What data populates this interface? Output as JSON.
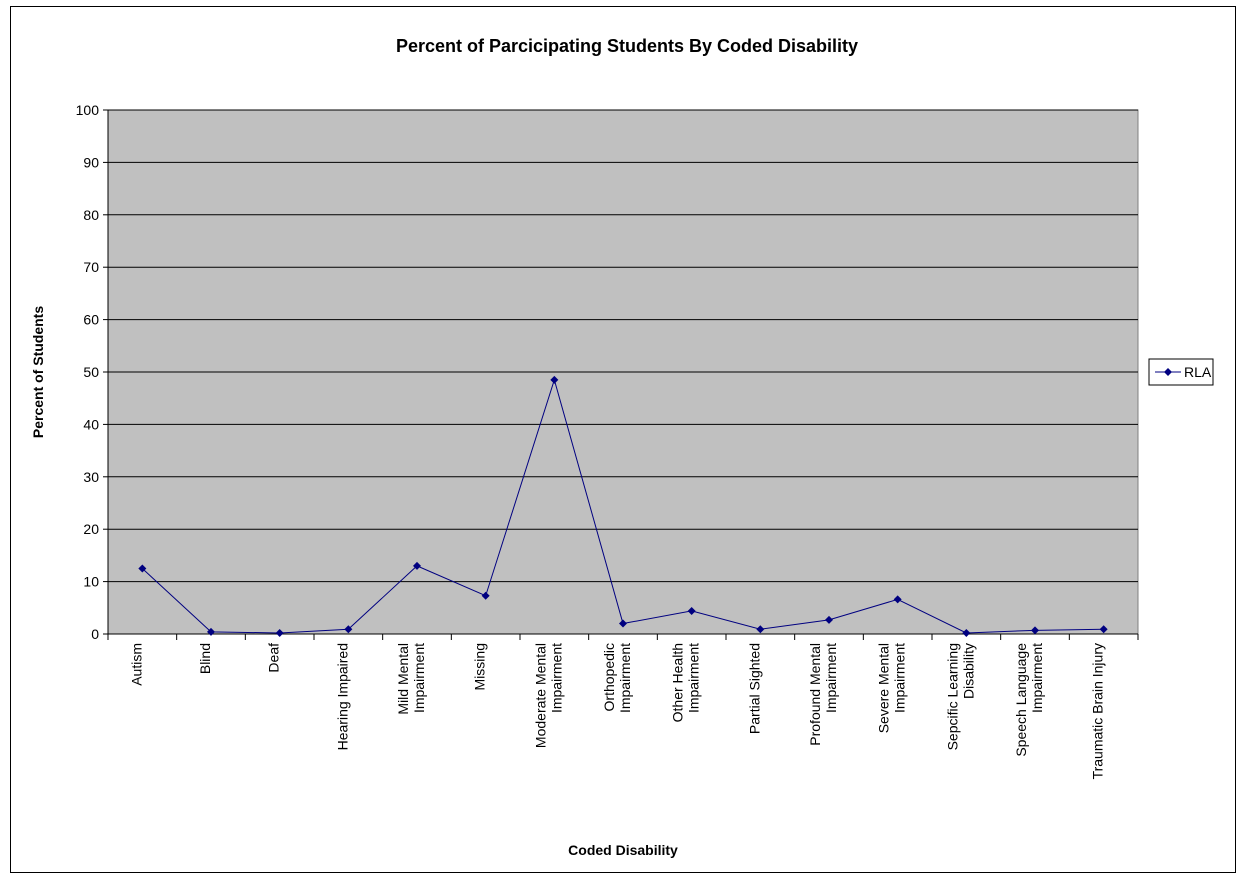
{
  "chart_data": {
    "type": "line",
    "title": "Percent of Parcicipating Students By Coded Disability",
    "xlabel": "Coded Disability",
    "ylabel": "Percent of Students",
    "ylim": [
      0,
      100
    ],
    "yticks": [
      0,
      10,
      20,
      30,
      40,
      50,
      60,
      70,
      80,
      90,
      100
    ],
    "grid": true,
    "legend_position": "right",
    "categories": [
      "Autism",
      "Blind",
      "Deaf",
      "Hearing Impaired",
      "Mild Mental Impairment",
      "Missing",
      "Moderate Mental Impairment",
      "Orthopedic Impairment",
      "Other Health Impairment",
      "Partial Sighted",
      "Profound Mental Impairment",
      "Severe Mental Impairment",
      "Sepcific Learning Disability",
      "Speech Language Impairment",
      "Traumatic Brain Injury"
    ],
    "category_lines": [
      [
        "Autism"
      ],
      [
        "Blind"
      ],
      [
        "Deaf"
      ],
      [
        "Hearing Impaired"
      ],
      [
        "Mild Mental",
        "Impairment"
      ],
      [
        "Missing"
      ],
      [
        "Moderate Mental",
        "Impairment"
      ],
      [
        "Orthopedic",
        "Impairment"
      ],
      [
        "Other Health",
        "Impairment"
      ],
      [
        "Partial Sighted"
      ],
      [
        "Profound Mental",
        "Impairment"
      ],
      [
        "Severe Mental",
        "Impairment"
      ],
      [
        "Sepcific Learning",
        "Disability"
      ],
      [
        "Speech Language",
        "Impairment"
      ],
      [
        "Traumatic Brain Injury"
      ]
    ],
    "series": [
      {
        "name": "RLA",
        "values": [
          12.5,
          0.4,
          0.2,
          0.9,
          13.0,
          7.3,
          48.5,
          2.0,
          4.4,
          0.9,
          2.7,
          6.6,
          0.2,
          0.7,
          0.9
        ]
      }
    ],
    "colors": {
      "plot_background": "#c0c0c0",
      "series_line": "#000080",
      "gridline": "#000000"
    }
  }
}
